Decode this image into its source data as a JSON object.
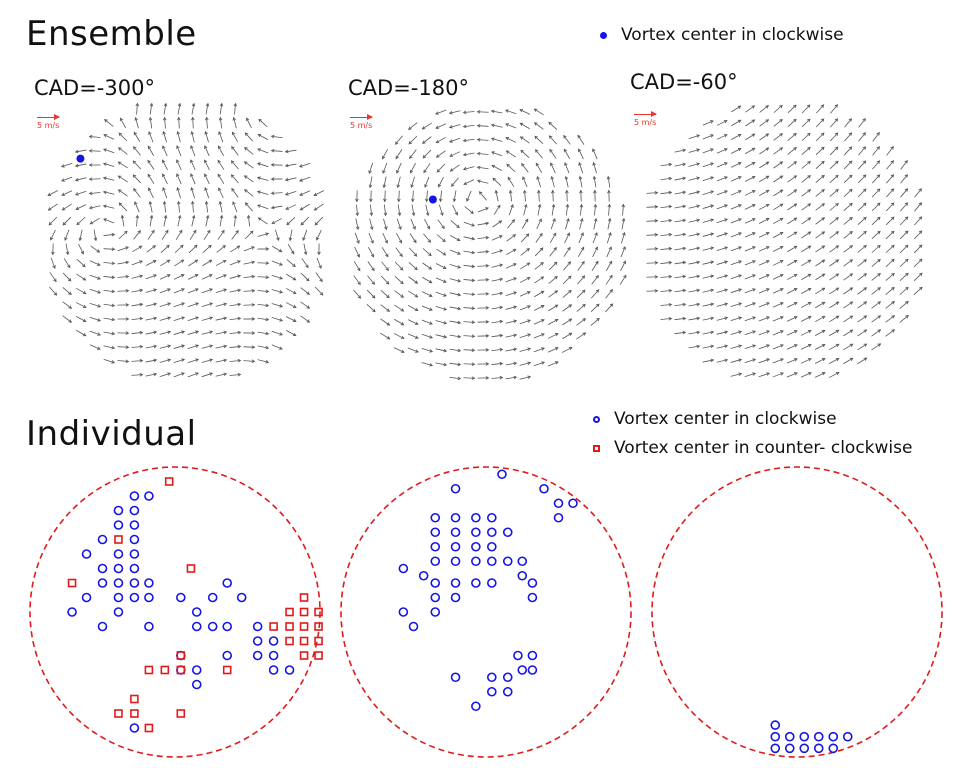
{
  "ensemble": {
    "title": "Ensemble",
    "legend": {
      "label": "Vortex center in clockwise",
      "color": "#1414e6",
      "marker": "filled-dot"
    },
    "panels": [
      {
        "cad": "CAD=-300°",
        "scale": "5 m/s",
        "vortex_centers": [
          [
            -0.72,
            0.57
          ]
        ]
      },
      {
        "cad": "CAD=-180°",
        "scale": "5 m/s",
        "vortex_centers": [
          [
            -0.38,
            0.3
          ]
        ]
      },
      {
        "cad": "CAD=-60°",
        "scale": "5 m/s",
        "vortex_centers": []
      }
    ]
  },
  "individual": {
    "title": "Individual",
    "legend": [
      {
        "label": "Vortex center in clockwise",
        "color": "#1414e6",
        "marker": "open-circle"
      },
      {
        "label": "Vortex center in counter- clockwise",
        "color": "#e01b1b",
        "marker": "open-square"
      }
    ]
  },
  "chart_data": [
    {
      "type": "scatter",
      "panel": "individual-1",
      "series": [
        {
          "name": "Vortex center in clockwise",
          "points": [
            [
              -0.28,
              0.8
            ],
            [
              -0.18,
              0.8
            ],
            [
              -0.39,
              0.7
            ],
            [
              -0.28,
              0.7
            ],
            [
              -0.39,
              0.6
            ],
            [
              -0.28,
              0.6
            ],
            [
              -0.5,
              0.5
            ],
            [
              -0.28,
              0.5
            ],
            [
              -0.39,
              0.4
            ],
            [
              -0.28,
              0.4
            ],
            [
              -0.61,
              0.4
            ],
            [
              -0.5,
              0.3
            ],
            [
              -0.39,
              0.3
            ],
            [
              -0.28,
              0.3
            ],
            [
              -0.5,
              0.2
            ],
            [
              -0.39,
              0.2
            ],
            [
              -0.28,
              0.2
            ],
            [
              -0.18,
              0.2
            ],
            [
              -0.61,
              0.1
            ],
            [
              -0.39,
              0.1
            ],
            [
              -0.28,
              0.1
            ],
            [
              -0.18,
              0.1
            ],
            [
              -0.71,
              0.0
            ],
            [
              -0.39,
              0.0
            ],
            [
              -0.18,
              -0.1
            ],
            [
              -0.5,
              -0.1
            ],
            [
              0.04,
              0.1
            ],
            [
              0.36,
              0.2
            ],
            [
              0.26,
              0.1
            ],
            [
              0.46,
              0.1
            ],
            [
              0.15,
              0.0
            ],
            [
              0.15,
              -0.1
            ],
            [
              0.26,
              -0.1
            ],
            [
              0.36,
              -0.1
            ],
            [
              0.57,
              -0.1
            ],
            [
              0.57,
              -0.2
            ],
            [
              0.68,
              -0.2
            ],
            [
              0.36,
              -0.3
            ],
            [
              0.57,
              -0.3
            ],
            [
              0.68,
              -0.3
            ],
            [
              0.68,
              -0.4
            ],
            [
              0.79,
              -0.4
            ],
            [
              0.04,
              -0.3
            ],
            [
              0.04,
              -0.4
            ],
            [
              0.15,
              -0.5
            ],
            [
              0.15,
              -0.4
            ],
            [
              -0.28,
              -0.8
            ]
          ]
        },
        {
          "name": "Vortex center in counter- clockwise",
          "points": [
            [
              -0.04,
              0.9
            ],
            [
              -0.39,
              0.5
            ],
            [
              0.11,
              0.3
            ],
            [
              -0.71,
              0.2
            ],
            [
              0.89,
              0.1
            ],
            [
              0.79,
              0.0
            ],
            [
              0.89,
              0.0
            ],
            [
              0.99,
              0.0
            ],
            [
              0.79,
              -0.1
            ],
            [
              0.89,
              -0.1
            ],
            [
              0.99,
              -0.1
            ],
            [
              0.68,
              -0.1
            ],
            [
              0.79,
              -0.2
            ],
            [
              0.89,
              -0.2
            ],
            [
              0.99,
              -0.2
            ],
            [
              0.89,
              -0.3
            ],
            [
              0.99,
              -0.3
            ],
            [
              0.04,
              -0.3
            ],
            [
              -0.07,
              -0.4
            ],
            [
              0.04,
              -0.4
            ],
            [
              0.36,
              -0.4
            ],
            [
              -0.18,
              -0.4
            ],
            [
              -0.28,
              -0.6
            ],
            [
              -0.39,
              -0.7
            ],
            [
              -0.28,
              -0.7
            ],
            [
              0.04,
              -0.7
            ],
            [
              -0.18,
              -0.8
            ]
          ]
        }
      ]
    },
    {
      "type": "scatter",
      "panel": "individual-2",
      "series": [
        {
          "name": "Vortex center in clockwise",
          "points": [
            [
              0.11,
              0.95
            ],
            [
              -0.21,
              0.85
            ],
            [
              0.4,
              0.85
            ],
            [
              0.5,
              0.75
            ],
            [
              0.6,
              0.75
            ],
            [
              0.5,
              0.65
            ],
            [
              -0.35,
              0.65
            ],
            [
              -0.21,
              0.65
            ],
            [
              -0.07,
              0.65
            ],
            [
              0.04,
              0.65
            ],
            [
              -0.35,
              0.55
            ],
            [
              -0.21,
              0.55
            ],
            [
              -0.07,
              0.55
            ],
            [
              0.04,
              0.55
            ],
            [
              0.15,
              0.55
            ],
            [
              -0.35,
              0.45
            ],
            [
              -0.21,
              0.45
            ],
            [
              -0.07,
              0.45
            ],
            [
              0.04,
              0.45
            ],
            [
              -0.35,
              0.35
            ],
            [
              -0.21,
              0.35
            ],
            [
              -0.07,
              0.35
            ],
            [
              0.04,
              0.35
            ],
            [
              0.15,
              0.35
            ],
            [
              0.25,
              0.35
            ],
            [
              -0.57,
              0.3
            ],
            [
              -0.43,
              0.25
            ],
            [
              -0.35,
              0.2
            ],
            [
              -0.21,
              0.2
            ],
            [
              -0.07,
              0.2
            ],
            [
              0.04,
              0.2
            ],
            [
              0.25,
              0.25
            ],
            [
              0.32,
              0.2
            ],
            [
              -0.35,
              0.1
            ],
            [
              -0.21,
              0.1
            ],
            [
              0.32,
              0.1
            ],
            [
              -0.57,
              0.0
            ],
            [
              -0.5,
              -0.1
            ],
            [
              -0.35,
              0.0
            ],
            [
              0.22,
              -0.3
            ],
            [
              0.32,
              -0.3
            ],
            [
              0.25,
              -0.4
            ],
            [
              0.32,
              -0.4
            ],
            [
              -0.21,
              -0.45
            ],
            [
              0.04,
              -0.45
            ],
            [
              0.15,
              -0.45
            ],
            [
              0.04,
              -0.55
            ],
            [
              0.15,
              -0.55
            ],
            [
              -0.07,
              -0.65
            ]
          ]
        }
      ]
    },
    {
      "type": "scatter",
      "panel": "individual-3",
      "series": [
        {
          "name": "Vortex center in clockwise",
          "points": [
            [
              -0.15,
              -0.78
            ],
            [
              -0.05,
              -0.86
            ],
            [
              0.05,
              -0.86
            ],
            [
              0.15,
              -0.86
            ],
            [
              0.25,
              -0.86
            ],
            [
              0.35,
              -0.86
            ],
            [
              -0.15,
              -0.86
            ],
            [
              -0.15,
              -0.94
            ],
            [
              -0.05,
              -0.94
            ],
            [
              0.05,
              -0.94
            ],
            [
              0.15,
              -0.94
            ],
            [
              0.25,
              -0.94
            ]
          ]
        }
      ]
    }
  ]
}
